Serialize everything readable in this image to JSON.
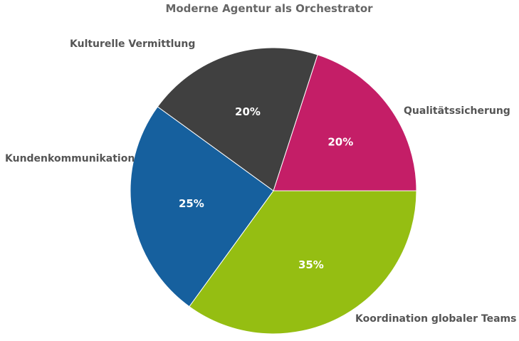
{
  "chart_data": {
    "type": "pie",
    "title": "Moderne Agentur als Orchestrator",
    "slices": [
      {
        "label": "Qualitätssicherung",
        "value": 20,
        "display": "20%",
        "color": "#C41E67"
      },
      {
        "label": "Koordination globaler Teams",
        "value": 35,
        "display": "35%",
        "color": "#95BE12"
      },
      {
        "label": "Kundenkommunikation",
        "value": 25,
        "display": "25%",
        "color": "#16609E"
      },
      {
        "label": "Kulturelle Vermittlung",
        "value": 20,
        "display": "20%",
        "color": "#404040"
      }
    ]
  }
}
